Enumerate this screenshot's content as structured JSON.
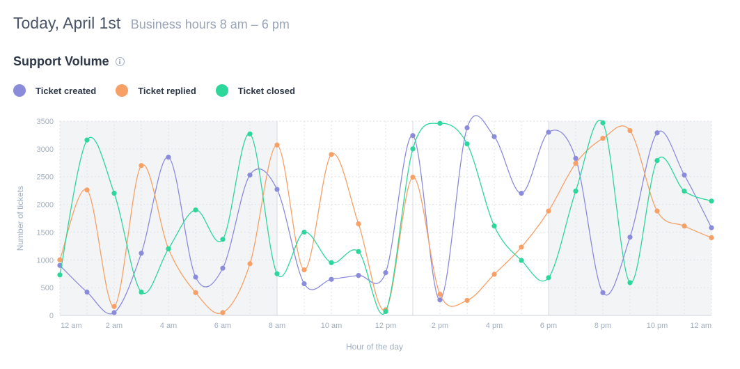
{
  "header": {
    "title": "Today, April 1st",
    "subtitle": "Business hours 8 am – 6 pm"
  },
  "section": {
    "title": "Support Volume"
  },
  "colors": {
    "created": "#8b8bdc",
    "replied": "#f7a066",
    "closed": "#2dd69a",
    "off_hours_band": "#f3f4f6",
    "grid": "#dfe2e7",
    "tick_text": "#a0aec0"
  },
  "chart_data": {
    "type": "line",
    "xlabel": "Hour of the day",
    "ylabel": "Number of tickets",
    "ylim": [
      0,
      3500
    ],
    "y_ticks": [
      0,
      500,
      1000,
      1500,
      2000,
      2500,
      3000,
      3500
    ],
    "x": [
      "12 am",
      "1 am",
      "2 am",
      "3 am",
      "4 am",
      "5 am",
      "6 am",
      "7 am",
      "8 am",
      "9 am",
      "10 am",
      "11 am",
      "12 pm",
      "1 pm",
      "2 pm",
      "3 pm",
      "4 pm",
      "5 pm",
      "6 pm",
      "7 pm",
      "8 pm",
      "9 pm",
      "10 pm",
      "11 pm",
      "12 am"
    ],
    "x_tick_labels": [
      "12 am",
      "2 am",
      "4 am",
      "6 am",
      "8 am",
      "10 am",
      "12 pm",
      "2 pm",
      "4 pm",
      "6 pm",
      "8 pm",
      "10 pm",
      "12 am"
    ],
    "business_hours": [
      "8 am",
      "6 pm"
    ],
    "legend_position": "top-left",
    "grid": true,
    "series": [
      {
        "name": "Ticket created",
        "key": "created",
        "values": [
          900,
          420,
          50,
          1120,
          2850,
          690,
          850,
          2530,
          2270,
          570,
          650,
          720,
          770,
          3240,
          280,
          3380,
          3220,
          2200,
          3300,
          2830,
          410,
          1410,
          3290,
          2530,
          1580
        ]
      },
      {
        "name": "Ticket replied",
        "key": "replied",
        "values": [
          1000,
          2260,
          160,
          2700,
          1200,
          410,
          50,
          930,
          3070,
          820,
          2900,
          1650,
          100,
          2490,
          380,
          270,
          740,
          1230,
          1880,
          2740,
          3190,
          3330,
          1880,
          1610,
          1400
        ]
      },
      {
        "name": "Ticket closed",
        "key": "closed",
        "values": [
          730,
          3160,
          2200,
          420,
          1200,
          1900,
          1370,
          3270,
          750,
          1500,
          950,
          1150,
          70,
          3000,
          3460,
          3090,
          1610,
          990,
          680,
          2240,
          3470,
          590,
          2790,
          2240,
          2060
        ]
      }
    ]
  }
}
